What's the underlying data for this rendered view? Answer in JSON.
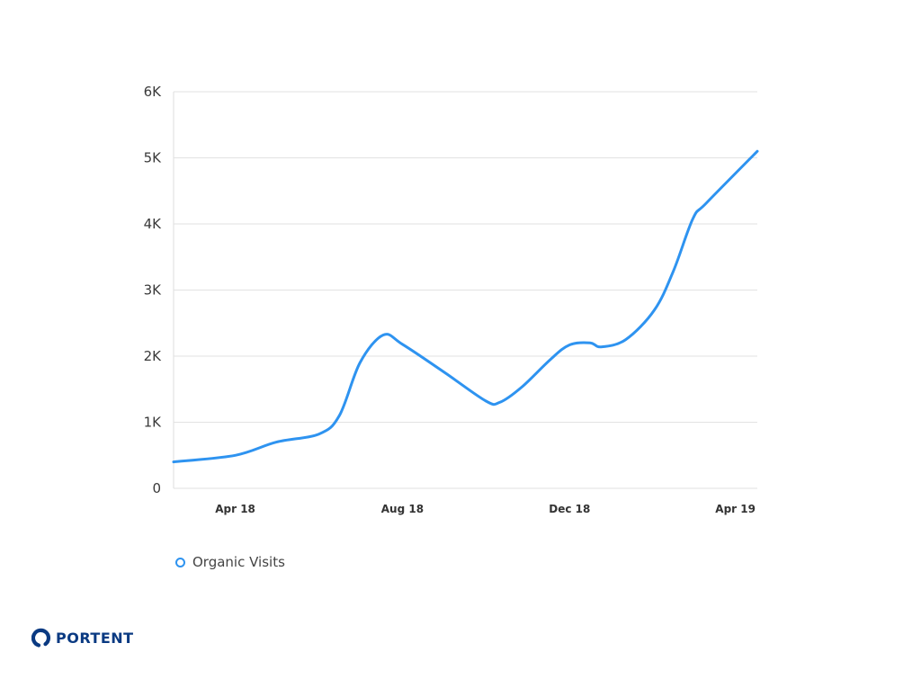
{
  "chart_data": {
    "type": "line",
    "x_ticks": [
      "Apr 18",
      "Aug 18",
      "Dec 18",
      "Apr 19"
    ],
    "y_ticks": [
      "0",
      "1K",
      "2K",
      "3K",
      "4K",
      "5K",
      "6K"
    ],
    "ylim": [
      0,
      6000
    ],
    "grid": true,
    "legend_position": "bottom-left",
    "series": [
      {
        "name": "Organic Visits",
        "color": "#2e93f0",
        "x": [
          "2018-03-01",
          "2018-04-15",
          "2018-05-15",
          "2018-06-15",
          "2018-06-30",
          "2018-07-15",
          "2018-08-01",
          "2018-08-15",
          "2018-09-15",
          "2018-10-15",
          "2018-10-25",
          "2018-11-10",
          "2018-12-01",
          "2018-12-15",
          "2018-12-30",
          "2019-01-07",
          "2019-01-25",
          "2019-02-15",
          "2019-03-01",
          "2019-03-15",
          "2019-03-25",
          "2019-05-01"
        ],
        "values": [
          400,
          500,
          700,
          820,
          1100,
          1900,
          2320,
          2180,
          1750,
          1320,
          1300,
          1530,
          1950,
          2170,
          2200,
          2140,
          2250,
          2700,
          3300,
          4080,
          4320,
          5100
        ]
      }
    ]
  },
  "brand": {
    "name": "PORTENT",
    "color": "#0a3a82",
    "accent": "#2e93f0"
  }
}
